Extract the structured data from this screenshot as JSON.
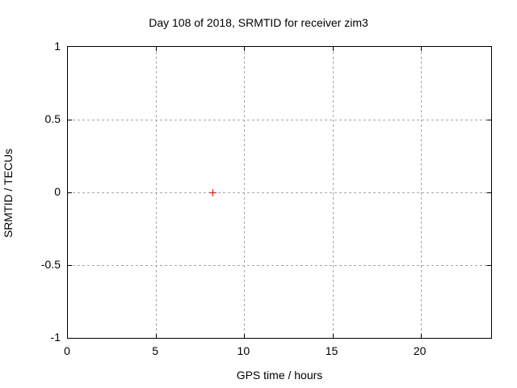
{
  "chart_data": {
    "type": "scatter",
    "title": "Day 108 of 2018, SRMTID for receiver zim3",
    "xlabel": "GPS time / hours",
    "ylabel": "SRMTID / TECUs",
    "xlim": [
      0,
      24
    ],
    "ylim": [
      -1,
      1
    ],
    "xticks": [
      0,
      5,
      10,
      15,
      20
    ],
    "yticks": [
      -1,
      -0.5,
      0,
      0.5,
      1
    ],
    "grid": true,
    "legend_position": "none",
    "series": [
      {
        "name": "SRMTID",
        "marker": "plus",
        "color": "#ff0000",
        "points": [
          [
            8.2,
            0
          ]
        ]
      }
    ],
    "colors": {
      "background": "#ffffff",
      "border": "#000000",
      "grid": "#a6a6a6",
      "text": "#000000"
    }
  }
}
